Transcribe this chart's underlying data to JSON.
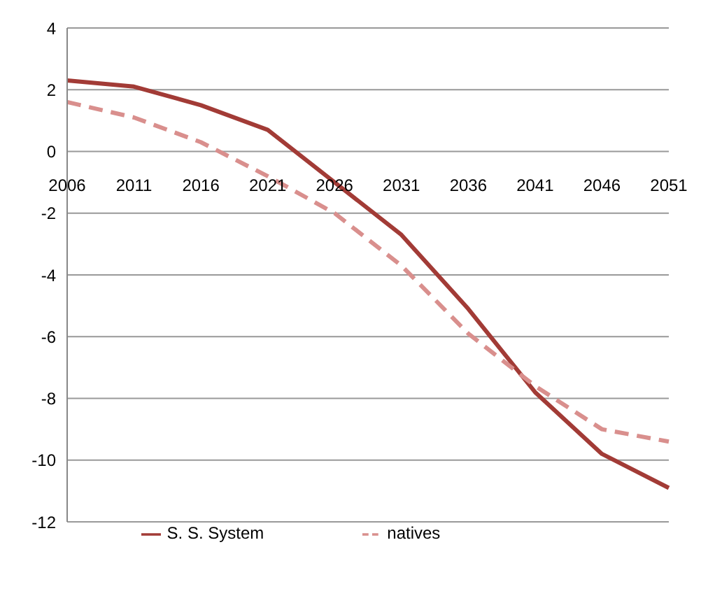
{
  "chart_data": {
    "type": "line",
    "categories": [
      "2006",
      "2011",
      "2016",
      "2021",
      "2026",
      "2031",
      "2036",
      "2041",
      "2046",
      "2051"
    ],
    "series": [
      {
        "name": "S. S. System",
        "color": "#a23b36",
        "line_style": "solid",
        "values": [
          2.3,
          2.1,
          1.5,
          0.7,
          -1.0,
          -2.7,
          -5.1,
          -7.8,
          -9.8,
          -10.9
        ]
      },
      {
        "name": "natives",
        "color": "#d98f8d",
        "line_style": "dashed",
        "values": [
          1.6,
          1.1,
          0.3,
          -0.8,
          -2.0,
          -3.7,
          -5.9,
          -7.6,
          -9.0,
          -9.4
        ]
      }
    ],
    "ylim": [
      -12,
      4
    ],
    "yticks": [
      -12,
      -10,
      -8,
      -6,
      -4,
      -2,
      0,
      2,
      4
    ],
    "grid": "y",
    "legend": "bottom",
    "marker": "none"
  }
}
